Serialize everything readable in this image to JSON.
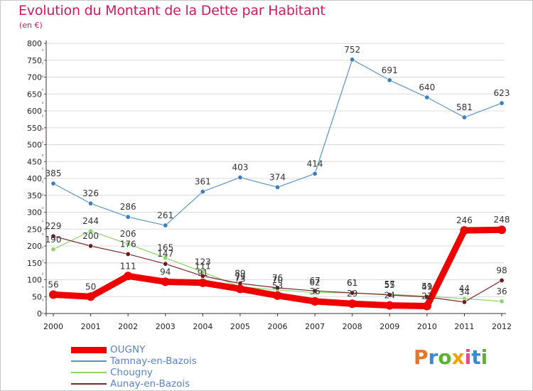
{
  "header": {
    "title": "Evolution du Montant de la Dette par Habitant",
    "subtitle": "(en €)"
  },
  "logo": {
    "text": "Proxiti",
    "letters": [
      "P",
      "r",
      "o",
      "x",
      "i",
      "t",
      "i"
    ],
    "colors": [
      "#e8742a",
      "#3a8bd1",
      "#5bb431",
      "#f0a000",
      "#e04b8a",
      "#3a8bd1",
      "#5bb431"
    ]
  },
  "chart_data": {
    "type": "line",
    "title": "Evolution du Montant de la Dette par Habitant",
    "subtitle": "(en €)",
    "xlabel": "",
    "ylabel": "",
    "x": [
      "2000",
      "2001",
      "2002",
      "2003",
      "2004",
      "2005",
      "2006",
      "2007",
      "2008",
      "2009",
      "2010",
      "2011",
      "2012"
    ],
    "ylim": [
      0,
      800
    ],
    "yticks": [
      0,
      50,
      100,
      150,
      200,
      250,
      300,
      350,
      400,
      450,
      500,
      550,
      600,
      650,
      700,
      750,
      800
    ],
    "grid": "horizontal",
    "legend_position": "bottom-left",
    "series": [
      {
        "name": "Tamnay-en-Bazois",
        "color": "#5b93c8",
        "values": [
          385,
          326,
          286,
          261,
          361,
          403,
          374,
          414,
          752,
          691,
          640,
          581,
          623
        ]
      },
      {
        "name": "Chougny",
        "color": "#8fd46a",
        "values": [
          190,
          244,
          206,
          165,
          123,
          79,
          70,
          62,
          61,
          57,
          51,
          44,
          36
        ]
      },
      {
        "name": "Aunay-en-Bazois",
        "color": "#7a2a2a",
        "values": [
          229,
          200,
          176,
          147,
          111,
          89,
          76,
          67,
          61,
          55,
          49,
          34,
          98
        ]
      },
      {
        "name": "OUGNY",
        "color": "#ee0000",
        "values": [
          56,
          50,
          111,
          94,
          91,
          73,
          53,
          36,
          29,
          24,
          22,
          246,
          248
        ]
      }
    ],
    "data_labels": [
      {
        "series": "Tamnay-en-Bazois",
        "values": [
          "385",
          "326",
          "286",
          "261",
          "361",
          "403",
          "374",
          "414",
          "752",
          "691",
          "640",
          "581",
          "623"
        ]
      },
      {
        "series": "Chougny",
        "values": [
          "190",
          "244",
          "206",
          "165",
          "123",
          "79",
          "70",
          "62",
          "61",
          "57",
          "51",
          "44",
          "36"
        ]
      },
      {
        "series": "Aunay-en-Bazois",
        "values": [
          "229",
          "200",
          "176",
          "147",
          "111",
          "89",
          "76",
          "67",
          "61",
          "55",
          "49",
          "34",
          "98"
        ]
      },
      {
        "series": "OUGNY",
        "values": [
          "56",
          "50",
          "111",
          "94",
          "91",
          "73",
          "53",
          "36",
          "29",
          "24",
          "22",
          "246",
          "248"
        ]
      }
    ]
  }
}
